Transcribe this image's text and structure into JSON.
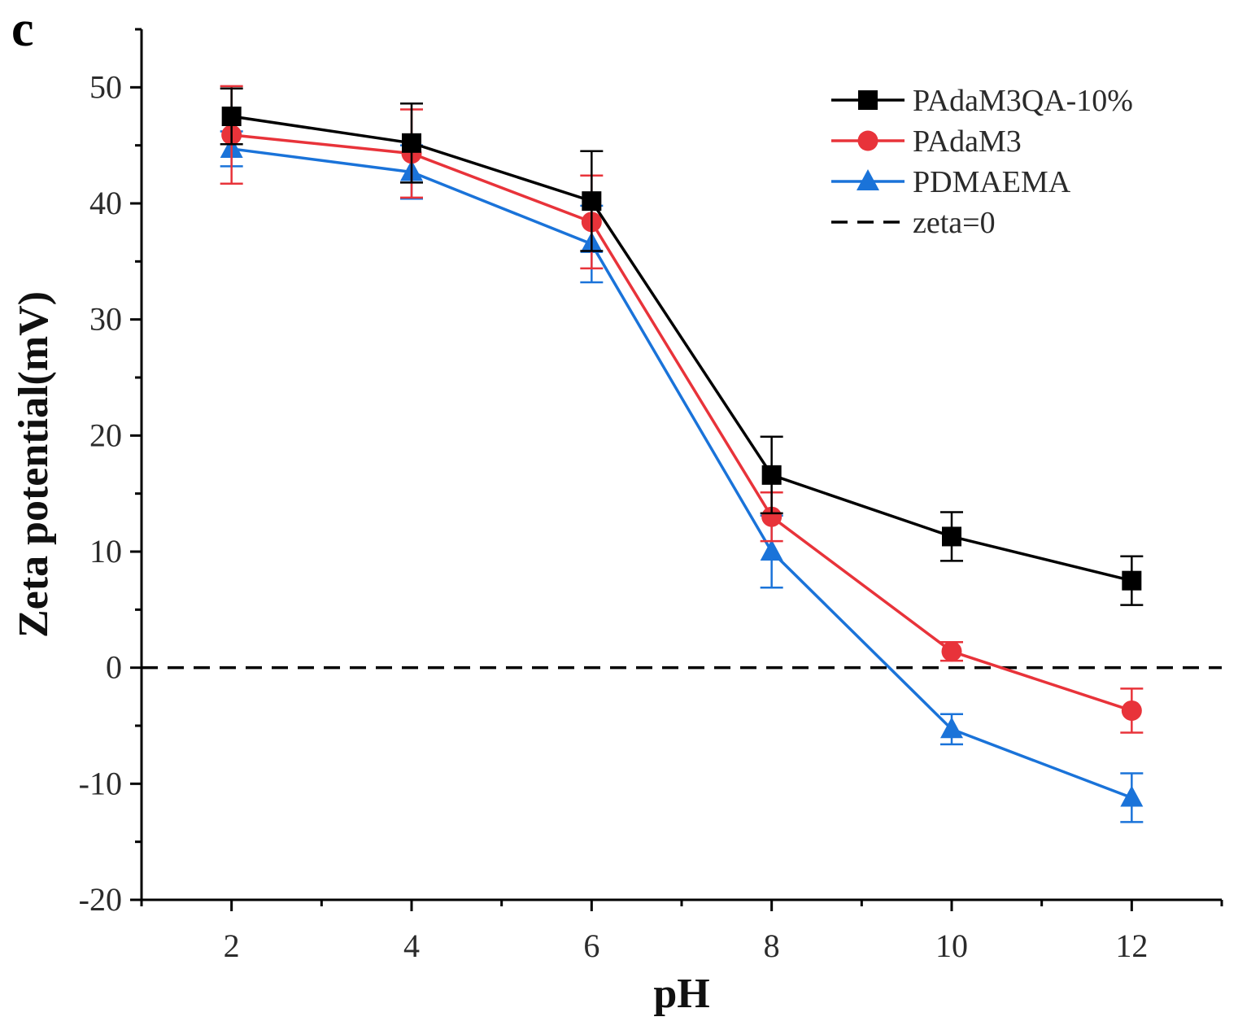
{
  "panel_label": "c",
  "chart_data": {
    "type": "line",
    "title": "",
    "xlabel": "pH",
    "ylabel": "Zeta potential(mV)",
    "x": [
      2,
      4,
      6,
      8,
      10,
      12
    ],
    "xlim": [
      1,
      13
    ],
    "ylim": [
      -20,
      55
    ],
    "xticks": [
      "2",
      "4",
      "6",
      "8",
      "10",
      "12"
    ],
    "yticks": [
      "-20",
      "-10",
      "0",
      "10",
      "20",
      "30",
      "40",
      "50"
    ],
    "xtick_values": [
      2,
      4,
      6,
      8,
      10,
      12
    ],
    "ytick_values": [
      -20,
      -10,
      0,
      10,
      20,
      30,
      40,
      50
    ],
    "grid": false,
    "legend_position": "top-right",
    "series": [
      {
        "name": "PAdaM3QA-10%",
        "color": "#000000",
        "marker": "square",
        "values": [
          47.5,
          45.2,
          40.2,
          16.6,
          11.3,
          7.5
        ],
        "errors": [
          2.4,
          3.4,
          4.3,
          3.3,
          2.1,
          2.1
        ]
      },
      {
        "name": "PAdaM3",
        "color": "#e8333a",
        "marker": "circle",
        "values": [
          45.9,
          44.3,
          38.4,
          13.0,
          1.4,
          -3.7
        ],
        "errors": [
          4.2,
          3.8,
          4.0,
          2.1,
          0.8,
          1.9
        ]
      },
      {
        "name": "PDMAEMA",
        "color": "#1a73d9",
        "marker": "triangle",
        "values": [
          44.7,
          42.7,
          36.5,
          10.0,
          -5.3,
          -11.2
        ],
        "errors": [
          1.5,
          2.3,
          3.3,
          3.1,
          1.3,
          2.1
        ]
      }
    ],
    "reference_line": {
      "name": "zeta=0",
      "y": 0,
      "color": "#000000",
      "style": "dashed"
    }
  }
}
